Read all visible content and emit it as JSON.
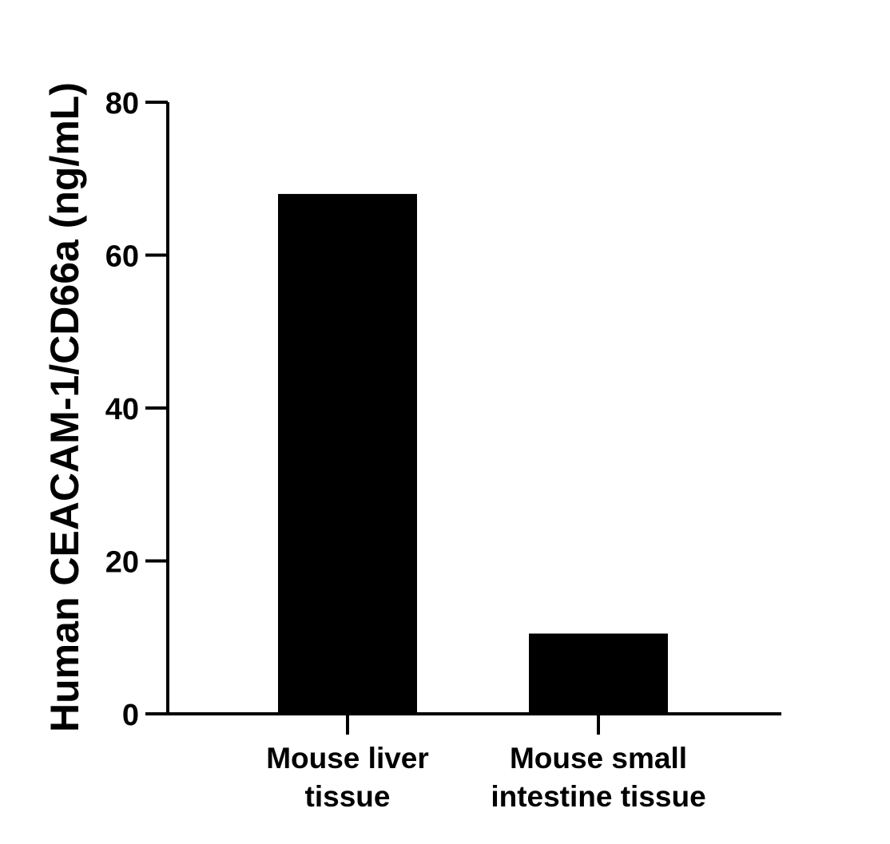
{
  "chart_data": {
    "type": "bar",
    "title": "",
    "xlabel": "",
    "ylabel": "Human CEACAM-1/CD66a (ng/mL)",
    "categories": [
      [
        "Mouse liver",
        "tissue"
      ],
      [
        "Mouse small",
        "intestine tissue"
      ]
    ],
    "values": [
      68,
      10.5
    ],
    "ylim": [
      0,
      80
    ],
    "yticks": [
      "0",
      "20",
      "40",
      "60",
      "80"
    ],
    "grid": false,
    "legend": "none",
    "bar_color": "#000000"
  }
}
